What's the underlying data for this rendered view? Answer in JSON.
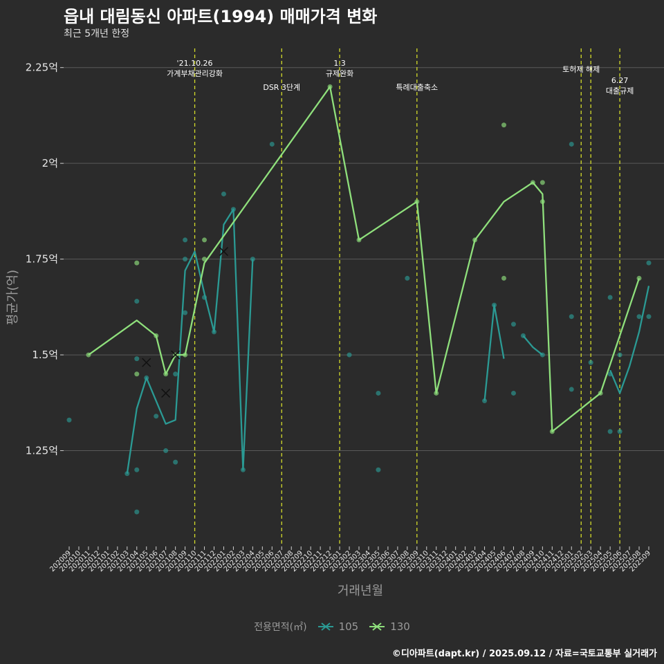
{
  "header": {
    "title": "읍내 대림동신 아파트(1994) 매매가격 변화",
    "subtitle": "최근 5개년 한정"
  },
  "caption": "©디아파트(dapt.kr) / 2025.09.12 / 자료=국토교통부 실거래가",
  "legend": {
    "title": "전용면적(㎡)",
    "items": [
      {
        "label": "105",
        "color": "#2b9a94"
      },
      {
        "label": "130",
        "color": "#8fe07c"
      }
    ]
  },
  "chart_data": {
    "type": "line",
    "xlabel": "거래년월",
    "ylabel": "평균가(억)",
    "ylim": [
      1.0,
      2.3
    ],
    "yticks": [
      1.25,
      1.5,
      1.75,
      2.0,
      2.25
    ],
    "ytick_labels": [
      "1.25억",
      "1.5억",
      "1.75억",
      "2억",
      "2.25억"
    ],
    "x_categories": [
      "202009",
      "202010",
      "202011",
      "202012",
      "202101",
      "202102",
      "202103",
      "202104",
      "202105",
      "202106",
      "202107",
      "202108",
      "202109",
      "202110",
      "202111",
      "202112",
      "202201",
      "202202",
      "202203",
      "202204",
      "202205",
      "202206",
      "202207",
      "202208",
      "202209",
      "202210",
      "202211",
      "202212",
      "202301",
      "202302",
      "202303",
      "202304",
      "202305",
      "202306",
      "202307",
      "202308",
      "202309",
      "202310",
      "202311",
      "202312",
      "202401",
      "202402",
      "202403",
      "202404",
      "202405",
      "202406",
      "202407",
      "202408",
      "202409",
      "202410",
      "202411",
      "202412",
      "202501",
      "202502",
      "202503",
      "202504",
      "202505",
      "202506",
      "202507",
      "202508",
      "202509"
    ],
    "x_tick_labels": [
      "202009",
      "202010",
      "202011",
      "202012",
      "202101",
      "202102",
      "202103",
      "202104",
      "202105",
      "202106",
      "202107",
      "202108",
      "202109",
      "202110",
      "202111",
      "202112",
      "202201",
      "202202",
      "202203",
      "202204",
      "202205",
      "202206",
      "202207",
      "202208",
      "202209",
      "202210",
      "202211",
      "202212",
      "202301",
      "202302",
      "202303",
      "202304",
      "202305",
      "202306",
      "202307",
      "202308",
      "202309",
      "202310",
      "202311",
      "202312",
      "202401",
      "202402",
      "202403",
      "202404",
      "202405",
      "202406",
      "202407",
      "202408",
      "202409",
      "202410",
      "202411",
      "202412",
      "202501",
      "202502",
      "202503",
      "202504",
      "202505",
      "202506",
      "202507",
      "202508",
      "202509"
    ],
    "annotations": [
      {
        "x": "202110",
        "lines": [
          "'21.10.26",
          "가계부채관리강화"
        ]
      },
      {
        "x": "202207",
        "lines": [
          "DSR 3단계"
        ]
      },
      {
        "x": "202301",
        "lines": [
          "1.3",
          "규제완화"
        ]
      },
      {
        "x": "202309",
        "lines": [
          "특례대출축소"
        ]
      },
      {
        "x": "202502",
        "lines": [
          "토허제 해제"
        ]
      },
      {
        "x": "202503",
        "lines": []
      },
      {
        "x": "202506",
        "lines": [
          "6.27",
          "대출규제"
        ]
      }
    ],
    "series": [
      {
        "name": "105",
        "color": "#2b9a94",
        "line_segments": [
          [
            [
              "202103",
              1.19
            ],
            [
              "202104",
              1.36
            ],
            [
              "202105",
              1.44
            ],
            [
              "202106",
              1.38
            ],
            [
              "202107",
              1.32
            ],
            [
              "202108",
              1.33
            ],
            [
              "202109",
              1.72
            ],
            [
              "202110",
              1.77
            ],
            [
              "202111",
              1.66
            ],
            [
              "202112",
              1.56
            ],
            [
              "202201",
              1.84
            ],
            [
              "202202",
              1.88
            ],
            [
              "202203",
              1.2
            ],
            [
              "202204",
              1.75
            ]
          ],
          [
            [
              "202404",
              1.38
            ],
            [
              "202405",
              1.63
            ],
            [
              "202406",
              1.49
            ]
          ],
          [
            [
              "202408",
              1.55
            ],
            [
              "202409",
              1.52
            ],
            [
              "202410",
              1.5
            ]
          ],
          [
            [
              "202505",
              1.46
            ],
            [
              "202506",
              1.4
            ],
            [
              "202507",
              1.47
            ],
            [
              "202508",
              1.56
            ],
            [
              "202509",
              1.68
            ]
          ]
        ],
        "points": [
          [
            "202009",
            1.33
          ],
          [
            "202103",
            1.19
          ],
          [
            "202104",
            1.64
          ],
          [
            "202104",
            1.49
          ],
          [
            "202104",
            1.2
          ],
          [
            "202104",
            1.09
          ],
          [
            "202105",
            1.44
          ],
          [
            "202106",
            1.34
          ],
          [
            "202107",
            1.25
          ],
          [
            "202108",
            1.45
          ],
          [
            "202108",
            1.22
          ],
          [
            "202109",
            1.8
          ],
          [
            "202109",
            1.75
          ],
          [
            "202109",
            1.61
          ],
          [
            "202111",
            1.65
          ],
          [
            "202112",
            1.56
          ],
          [
            "202201",
            1.92
          ],
          [
            "202202",
            1.88
          ],
          [
            "202203",
            1.2
          ],
          [
            "202204",
            1.75
          ],
          [
            "202206",
            2.05
          ],
          [
            "202302",
            1.5
          ],
          [
            "202305",
            1.4
          ],
          [
            "202305",
            1.2
          ],
          [
            "202308",
            1.7
          ],
          [
            "202404",
            1.38
          ],
          [
            "202405",
            1.63
          ],
          [
            "202407",
            1.58
          ],
          [
            "202407",
            1.4
          ],
          [
            "202408",
            1.55
          ],
          [
            "202410",
            1.5
          ],
          [
            "202501",
            2.05
          ],
          [
            "202501",
            1.6
          ],
          [
            "202501",
            1.41
          ],
          [
            "202503",
            1.48
          ],
          [
            "202505",
            1.65
          ],
          [
            "202505",
            1.45
          ],
          [
            "202505",
            1.3
          ],
          [
            "202506",
            1.5
          ],
          [
            "202506",
            1.3
          ],
          [
            "202508",
            1.6
          ],
          [
            "202509",
            1.74
          ],
          [
            "202509",
            1.6
          ]
        ],
        "crosses": [
          [
            "202105",
            1.48
          ],
          [
            "202107",
            1.4
          ],
          [
            "202201",
            1.77
          ]
        ]
      },
      {
        "name": "130",
        "color": "#8fe07c",
        "line_segments": [
          [
            [
              "202011",
              1.5
            ],
            [
              "202104",
              1.59
            ],
            [
              "202106",
              1.55
            ],
            [
              "202107",
              1.45
            ],
            [
              "202108",
              1.5
            ],
            [
              "202109",
              1.5
            ],
            [
              "202111",
              1.74
            ],
            [
              "202212",
              2.2
            ],
            [
              "202303",
              1.8
            ],
            [
              "202309",
              1.9
            ],
            [
              "202311",
              1.4
            ],
            [
              "202403",
              1.8
            ],
            [
              "202406",
              1.9
            ],
            [
              "202409",
              1.95
            ],
            [
              "202410",
              1.92
            ],
            [
              "202411",
              1.3
            ],
            [
              "202504",
              1.4
            ],
            [
              "202508",
              1.7
            ]
          ]
        ],
        "points": [
          [
            "202011",
            1.5
          ],
          [
            "202104",
            1.74
          ],
          [
            "202104",
            1.45
          ],
          [
            "202106",
            1.55
          ],
          [
            "202107",
            1.45
          ],
          [
            "202108",
            1.5
          ],
          [
            "202109",
            1.5
          ],
          [
            "202111",
            1.8
          ],
          [
            "202111",
            1.75
          ],
          [
            "202212",
            2.2
          ],
          [
            "202303",
            1.8
          ],
          [
            "202309",
            1.9
          ],
          [
            "202311",
            1.4
          ],
          [
            "202403",
            1.8
          ],
          [
            "202406",
            2.1
          ],
          [
            "202406",
            1.7
          ],
          [
            "202409",
            1.95
          ],
          [
            "202410",
            1.95
          ],
          [
            "202410",
            1.9
          ],
          [
            "202411",
            1.3
          ],
          [
            "202504",
            1.4
          ],
          [
            "202508",
            1.7
          ]
        ],
        "crosses": [
          [
            "202108",
            1.5
          ]
        ]
      }
    ],
    "grid": true,
    "legend_position": "bottom"
  }
}
